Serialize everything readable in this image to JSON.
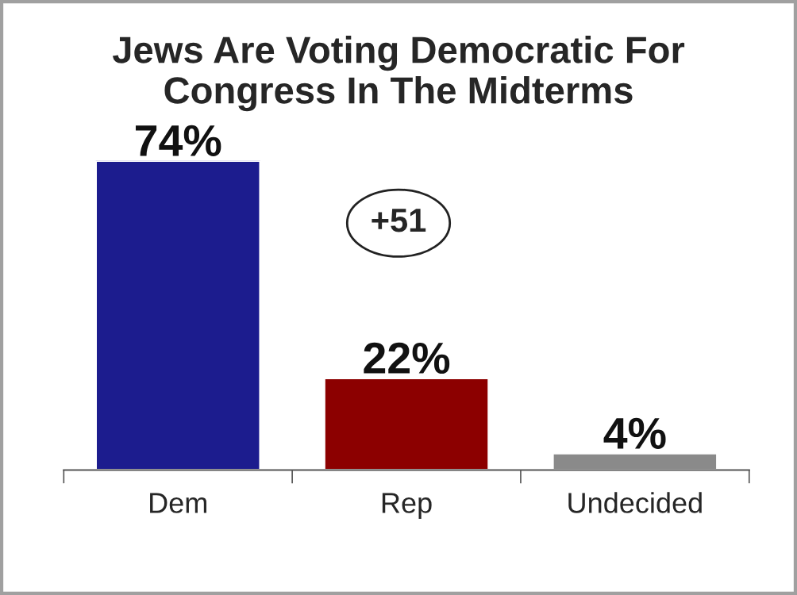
{
  "chart_data": {
    "type": "bar",
    "title": "Jews Are Voting Democratic For\nCongress In The Midterms",
    "categories": [
      "Dem",
      "Rep",
      "Undecided"
    ],
    "values": [
      74,
      22,
      4
    ],
    "colors": [
      "#1c1c8e",
      "#8c0000",
      "#8a8a8a"
    ],
    "value_labels": [
      "74%",
      "22%",
      "4%"
    ],
    "annotations": [
      "+51"
    ],
    "grid": false,
    "legend": false
  }
}
